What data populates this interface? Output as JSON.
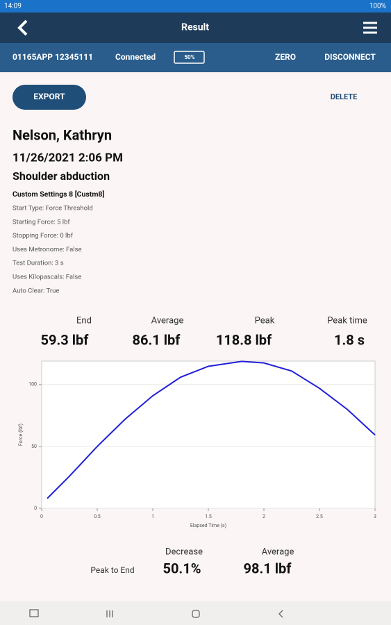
{
  "status_bar": {
    "time": "14:09",
    "battery": "100%"
  },
  "header": {
    "title": "Result"
  },
  "device_bar": {
    "device": "01165APP 12345111",
    "status": "Connected",
    "battery": "50%",
    "actions": [
      "ZERO",
      "DISCONNECT"
    ]
  },
  "actions": {
    "export": "EXPORT",
    "delete": "DELETE"
  },
  "patient": {
    "name": "Nelson, Kathryn",
    "date": "11/26/2021 2:06 PM",
    "test": "Shoulder abduction",
    "settings": "Custom Settings 8 [Custm8]",
    "details": [
      "Start Type: Force Threshold",
      "Starting Force: 5 lbf",
      "Stopping Force: 0 lbf",
      "Uses Metronome: False",
      "Test Duration: 3 s",
      "Uses Kilopascals: False",
      "Auto Clear: True"
    ]
  },
  "summary": {
    "labels": [
      "End",
      "Average",
      "Peak",
      "Peak time"
    ],
    "values": [
      "59.3 lbf",
      "86.1 lbf",
      "118.8 lbf",
      "1.8 s"
    ]
  },
  "chart_data": {
    "type": "line",
    "x_label": "Elapsed Time (s)",
    "y_label": "Force (lbf)",
    "x": [
      0.05,
      0.25,
      0.5,
      0.75,
      1,
      1.25,
      1.5,
      1.8,
      2,
      2.25,
      2.5,
      2.75,
      3
    ],
    "series": [
      {
        "color": "#2020d8",
        "values": [
          8,
          26,
          50,
          72,
          91,
          106,
          114.8,
          118.8,
          117.5,
          111,
          97,
          80,
          59.3
        ]
      }
    ],
    "xlim": [
      0,
      3
    ],
    "ylim": [
      0,
      119
    ],
    "xticks": [
      0,
      0.5,
      1,
      1.5,
      2,
      2.5,
      3
    ],
    "yticks": [
      0,
      50,
      100
    ],
    "grid": true
  },
  "comparison": {
    "row_label": "Peak to End",
    "labels": [
      "Decrease",
      "Average"
    ],
    "values": [
      "50.1%",
      "98.1 lbf"
    ]
  }
}
